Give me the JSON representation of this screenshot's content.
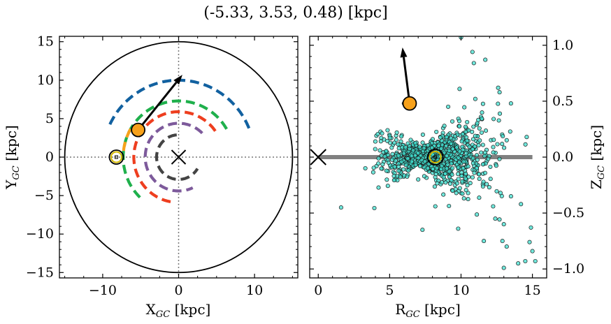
{
  "chart_data": {
    "title": "(-5.33, 3.53, 0.48) [kpc]",
    "panels": [
      {
        "type": "line",
        "name": "galactic-plane-top-view",
        "xlabel_main": "X",
        "xlabel_sub": "GC",
        "xlabel_unit": " [kpc]",
        "ylabel_main": "Y",
        "ylabel_sub": "GC",
        "ylabel_unit": " [kpc]",
        "xlim": [
          -15.7,
          15.7
        ],
        "ylim": [
          -15.7,
          15.7
        ],
        "xticks": [
          -10,
          0,
          10
        ],
        "xtick_labels": [
          "−10",
          "0",
          "10"
        ],
        "yticks": [
          15,
          10,
          5,
          0,
          -5,
          -10,
          -15
        ],
        "ytick_labels": [
          "15",
          "10",
          "5",
          "0",
          "−5",
          "−10",
          "−15"
        ],
        "boundary_circle_radius": 15,
        "center_marker": {
          "x": 0,
          "y": 0,
          "symbol": "x"
        },
        "sun": {
          "x": -8.2,
          "y": 0
        },
        "object": {
          "x": -5.33,
          "y": 3.53,
          "color": "#f7a11a"
        },
        "velocity_arrow": {
          "from": [
            -5.33,
            3.53
          ],
          "to": [
            0.5,
            10.7
          ]
        },
        "spiral_arms": [
          {
            "color": "#1261a0",
            "radius": 10.0,
            "angles_deg": [
              22,
              158
            ]
          },
          {
            "color": "#1fb04c",
            "radius": 7.3,
            "angles_deg": [
              30,
              230
            ]
          },
          {
            "color": "#f7a11a",
            "radius": 7.3,
            "angles_deg": [
              150,
              175
            ]
          },
          {
            "color": "#ee3e1f",
            "radius": 5.9,
            "angles_deg": [
              35,
              265
            ]
          },
          {
            "color": "#7d5a9b",
            "radius": 4.4,
            "angles_deg": [
              45,
              295
            ]
          },
          {
            "color": "#444444",
            "radius": 2.9,
            "angles_deg": [
              95,
              330
            ]
          }
        ]
      },
      {
        "type": "scatter",
        "name": "r-z-side-view",
        "xlabel_main": "R",
        "xlabel_sub": "GC",
        "xlabel_unit": " [kpc]",
        "ylabel_main": "Z",
        "ylabel_sub": "GC",
        "ylabel_unit": " [kpc]",
        "xlim": [
          -0.6,
          16.0
        ],
        "ylim": [
          -1.08,
          1.08
        ],
        "xticks": [
          0,
          5,
          10,
          15
        ],
        "xtick_labels": [
          "0",
          "5",
          "10",
          "15"
        ],
        "yticks": [
          1.0,
          0.5,
          0.0,
          -0.5,
          -1.0
        ],
        "ytick_labels": [
          "1.0",
          "0.5",
          "0.0",
          "−0.5",
          "−1.0"
        ],
        "disk_line": {
          "x": [
            0,
            15
          ],
          "y": 0
        },
        "center_marker": {
          "x": 0,
          "y": 0,
          "symbol": "x"
        },
        "sun": {
          "x": 8.2,
          "y": 0
        },
        "object": {
          "x": 6.4,
          "y": 0.48,
          "color": "#f7a11a"
        },
        "velocity_arrow": {
          "from": [
            6.4,
            0.48
          ],
          "to": [
            5.9,
            0.98
          ]
        },
        "scatter_color": "#40e0d0",
        "outliers": [
          [
            1.6,
            -0.45
          ],
          [
            3.3,
            -0.1
          ],
          [
            4.0,
            0.14
          ],
          [
            5.5,
            0.22
          ],
          [
            6.0,
            0.48
          ],
          [
            9.9,
            0.61
          ],
          [
            10.0,
            1.07
          ],
          [
            10.8,
            0.94
          ],
          [
            10.9,
            0.84
          ],
          [
            7.3,
            -0.65
          ],
          [
            9.8,
            -0.64
          ],
          [
            11.7,
            0.87
          ],
          [
            12.9,
            -0.75
          ],
          [
            13.0,
            -0.6
          ],
          [
            13.5,
            -0.35
          ],
          [
            13.0,
            -0.99
          ],
          [
            14.0,
            -0.95
          ],
          [
            14.5,
            -0.93
          ],
          [
            15.2,
            -0.93
          ],
          [
            14.8,
            -0.76
          ],
          [
            15.0,
            -0.84
          ],
          [
            14.9,
            -0.63
          ],
          [
            12.4,
            -0.55
          ],
          [
            11.6,
            -0.75
          ],
          [
            14.2,
            -0.42
          ],
          [
            11.0,
            0.52
          ],
          [
            12.6,
            0.62
          ],
          [
            12.7,
            0.58
          ],
          [
            13.5,
            0.48
          ],
          [
            13.2,
            -0.8
          ],
          [
            14.6,
            0.18
          ],
          [
            8.2,
            -0.44
          ],
          [
            7.0,
            -0.2
          ],
          [
            9.1,
            0.45
          ]
        ]
      }
    ]
  }
}
